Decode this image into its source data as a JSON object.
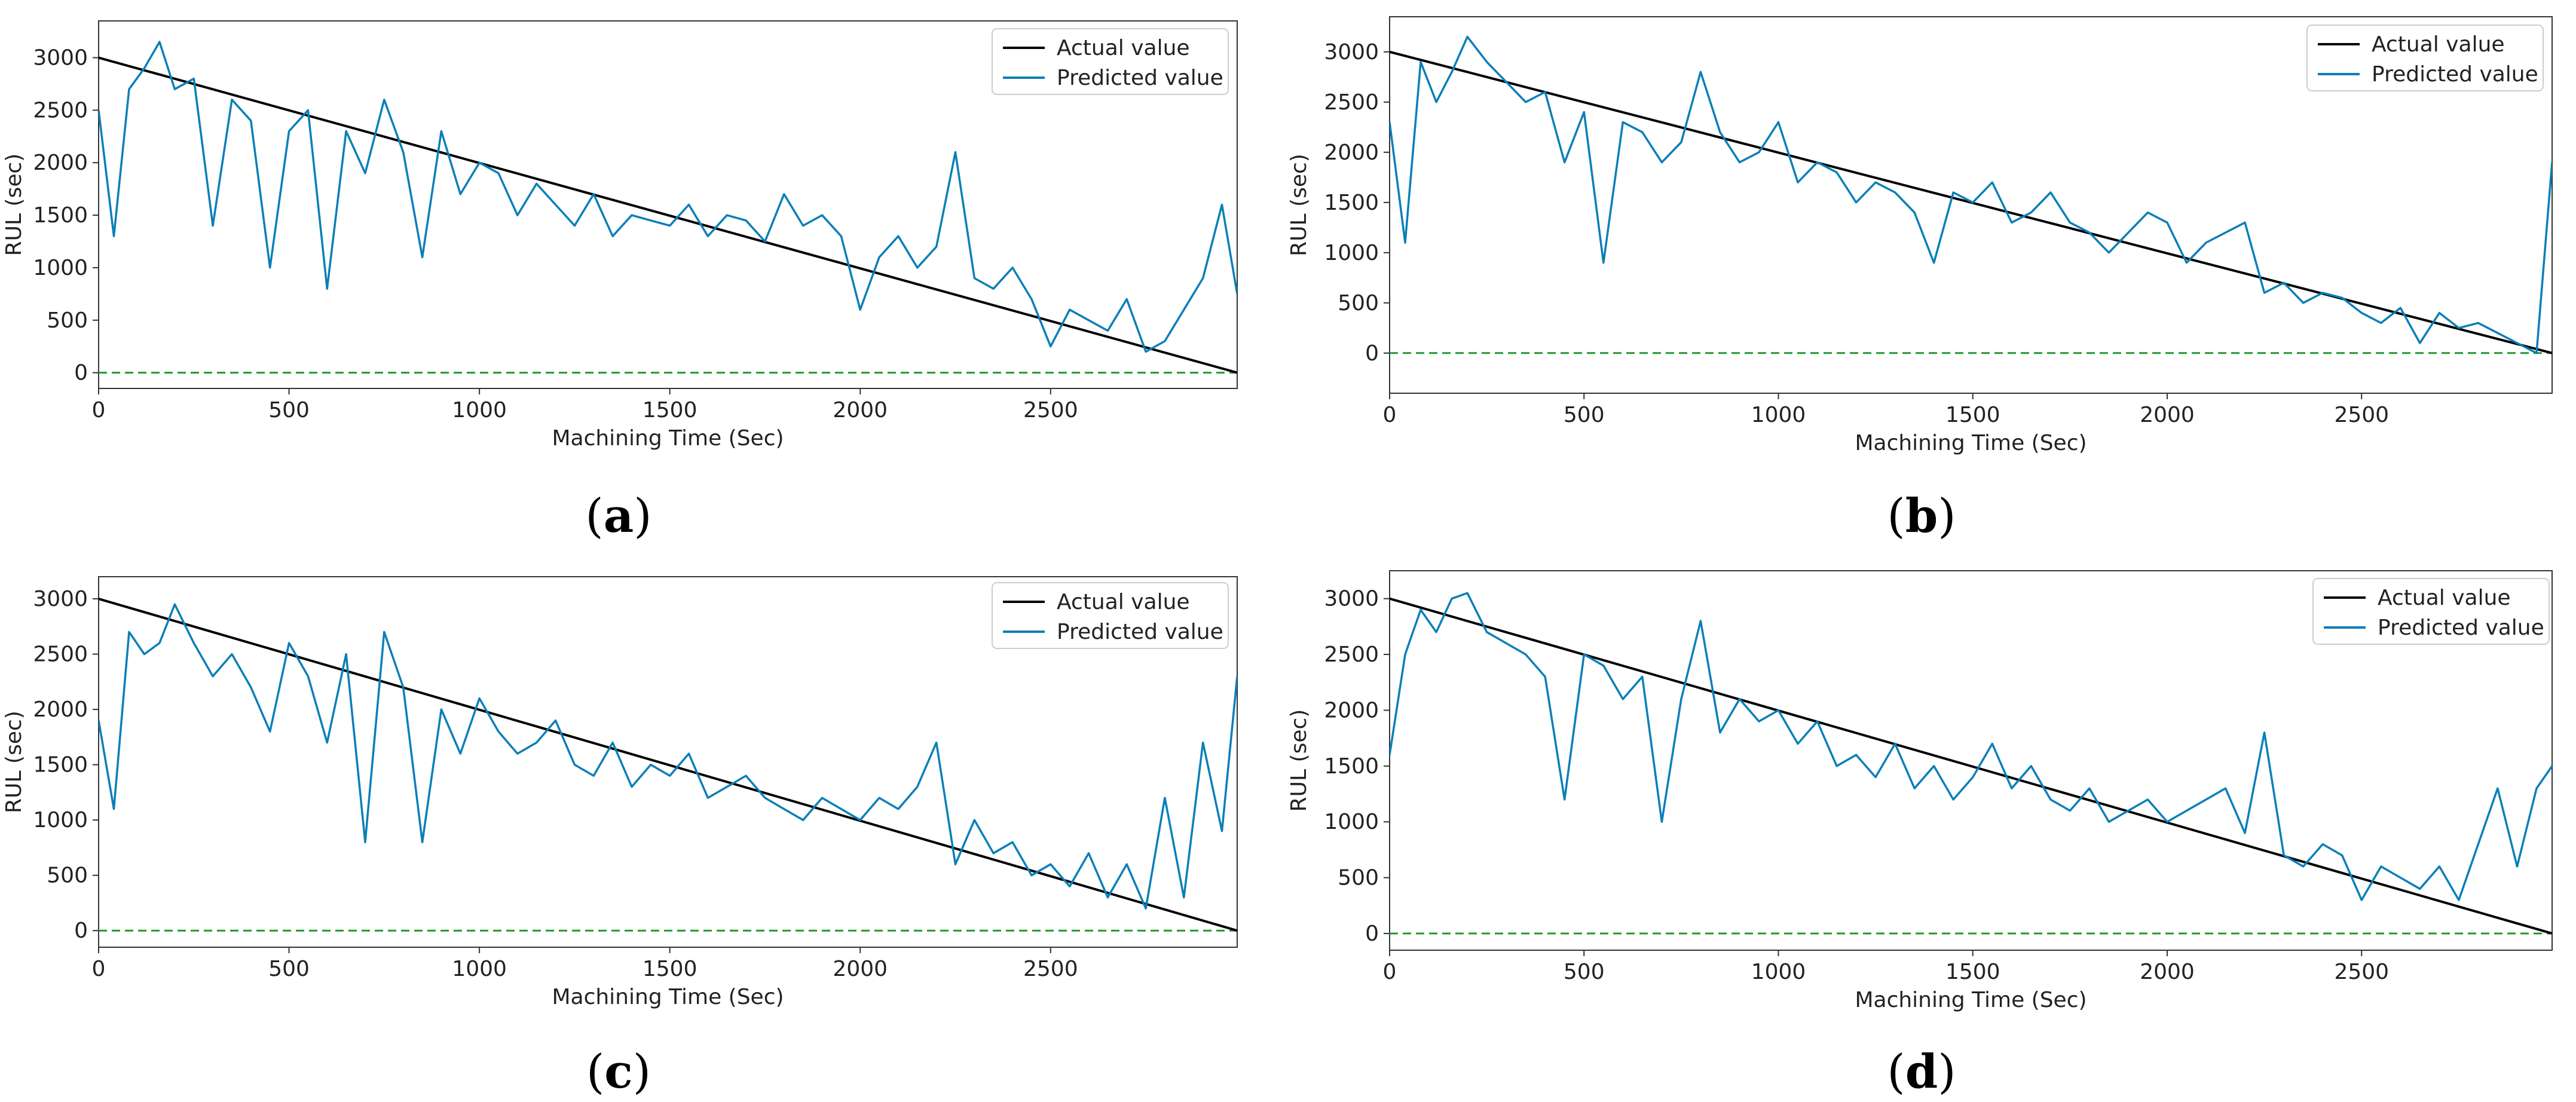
{
  "colors": {
    "actual": "#000000",
    "predicted": "#0a7fb8",
    "zero_line": "#1f9a2e",
    "axis": "#333333"
  },
  "chart_data": [
    {
      "id": "a",
      "type": "line",
      "panel_label": "a",
      "xlabel": "Machining Time (Sec)",
      "ylabel": "RUL (sec)",
      "xlim": [
        0,
        2990
      ],
      "ylim": [
        -150,
        3350
      ],
      "xticks": [
        0,
        500,
        1000,
        1500,
        2000,
        2500
      ],
      "yticks": [
        0,
        500,
        1000,
        1500,
        2000,
        2500,
        3000
      ],
      "legend": [
        "Actual value",
        "Predicted value"
      ],
      "legend_position": "top-right",
      "series": [
        {
          "name": "Actual value",
          "x": [
            0,
            2990
          ],
          "values": [
            3000,
            0
          ]
        },
        {
          "name": "Predicted value",
          "x": [
            0,
            40,
            80,
            120,
            160,
            200,
            250,
            300,
            350,
            400,
            450,
            500,
            550,
            600,
            650,
            700,
            750,
            800,
            850,
            900,
            950,
            1000,
            1050,
            1100,
            1150,
            1200,
            1250,
            1300,
            1350,
            1400,
            1450,
            1500,
            1550,
            1600,
            1650,
            1700,
            1750,
            1800,
            1850,
            1900,
            1950,
            2000,
            2050,
            2100,
            2150,
            2200,
            2250,
            2300,
            2350,
            2400,
            2450,
            2500,
            2550,
            2600,
            2650,
            2700,
            2750,
            2800,
            2850,
            2900,
            2950,
            2990
          ],
          "values": [
            2500,
            1300,
            2700,
            2900,
            3150,
            2700,
            2800,
            1400,
            2600,
            2400,
            1000,
            2300,
            2500,
            800,
            2300,
            1900,
            2600,
            2100,
            1100,
            2300,
            1700,
            2000,
            1900,
            1500,
            1800,
            1600,
            1400,
            1700,
            1300,
            1500,
            1450,
            1400,
            1600,
            1300,
            1500,
            1450,
            1250,
            1700,
            1400,
            1500,
            1300,
            600,
            1100,
            1300,
            1000,
            1200,
            2100,
            900,
            800,
            1000,
            700,
            250,
            600,
            500,
            400,
            700,
            200,
            300,
            600,
            900,
            1600,
            750
          ]
        }
      ]
    },
    {
      "id": "b",
      "type": "line",
      "panel_label": "b",
      "xlabel": "Machining Time (Sec)",
      "ylabel": "RUL (sec)",
      "xlim": [
        0,
        2990
      ],
      "ylim": [
        -400,
        3350
      ],
      "xticks": [
        0,
        500,
        1000,
        1500,
        2000,
        2500
      ],
      "yticks": [
        0,
        500,
        1000,
        1500,
        2000,
        2500,
        3000
      ],
      "legend": [
        "Actual value",
        "Predicted value"
      ],
      "legend_position": "top-right",
      "series": [
        {
          "name": "Actual value",
          "x": [
            0,
            2990
          ],
          "values": [
            3000,
            0
          ]
        },
        {
          "name": "Predicted value",
          "x": [
            0,
            40,
            80,
            120,
            160,
            200,
            250,
            300,
            350,
            400,
            450,
            500,
            550,
            600,
            650,
            700,
            750,
            800,
            850,
            900,
            950,
            1000,
            1050,
            1100,
            1150,
            1200,
            1250,
            1300,
            1350,
            1400,
            1450,
            1500,
            1550,
            1600,
            1650,
            1700,
            1750,
            1800,
            1850,
            1900,
            1950,
            2000,
            2050,
            2100,
            2150,
            2200,
            2250,
            2300,
            2350,
            2400,
            2450,
            2500,
            2550,
            2600,
            2650,
            2700,
            2750,
            2800,
            2850,
            2900,
            2950,
            2990
          ],
          "values": [
            2300,
            1100,
            2900,
            2500,
            2800,
            3150,
            2900,
            2700,
            2500,
            2600,
            1900,
            2400,
            900,
            2300,
            2200,
            1900,
            2100,
            2800,
            2200,
            1900,
            2000,
            2300,
            1700,
            1900,
            1800,
            1500,
            1700,
            1600,
            1400,
            900,
            1600,
            1500,
            1700,
            1300,
            1400,
            1600,
            1300,
            1200,
            1000,
            1200,
            1400,
            1300,
            900,
            1100,
            1200,
            1300,
            600,
            700,
            500,
            600,
            550,
            400,
            300,
            450,
            100,
            400,
            250,
            300,
            200,
            100,
            0,
            1900
          ]
        }
      ]
    },
    {
      "id": "c",
      "type": "line",
      "panel_label": "c",
      "xlabel": "Machining Time (Sec)",
      "ylabel": "RUL (sec)",
      "xlim": [
        0,
        2990
      ],
      "ylim": [
        -150,
        3200
      ],
      "xticks": [
        0,
        500,
        1000,
        1500,
        2000,
        2500
      ],
      "yticks": [
        0,
        500,
        1000,
        1500,
        2000,
        2500,
        3000
      ],
      "legend": [
        "Actual value",
        "Predicted value"
      ],
      "legend_position": "top-right",
      "series": [
        {
          "name": "Actual value",
          "x": [
            0,
            2990
          ],
          "values": [
            3000,
            0
          ]
        },
        {
          "name": "Predicted value",
          "x": [
            0,
            40,
            80,
            120,
            160,
            200,
            250,
            300,
            350,
            400,
            450,
            500,
            550,
            600,
            650,
            700,
            750,
            800,
            850,
            900,
            950,
            1000,
            1050,
            1100,
            1150,
            1200,
            1250,
            1300,
            1350,
            1400,
            1450,
            1500,
            1550,
            1600,
            1650,
            1700,
            1750,
            1800,
            1850,
            1900,
            1950,
            2000,
            2050,
            2100,
            2150,
            2200,
            2250,
            2300,
            2350,
            2400,
            2450,
            2500,
            2550,
            2600,
            2650,
            2700,
            2750,
            2800,
            2850,
            2900,
            2950,
            2990
          ],
          "values": [
            1900,
            1100,
            2700,
            2500,
            2600,
            2950,
            2600,
            2300,
            2500,
            2200,
            1800,
            2600,
            2300,
            1700,
            2500,
            800,
            2700,
            2200,
            800,
            2000,
            1600,
            2100,
            1800,
            1600,
            1700,
            1900,
            1500,
            1400,
            1700,
            1300,
            1500,
            1400,
            1600,
            1200,
            1300,
            1400,
            1200,
            1100,
            1000,
            1200,
            1100,
            1000,
            1200,
            1100,
            1300,
            1700,
            600,
            1000,
            700,
            800,
            500,
            600,
            400,
            700,
            300,
            600,
            200,
            1200,
            300,
            1700,
            900,
            2300
          ]
        }
      ]
    },
    {
      "id": "d",
      "type": "line",
      "panel_label": "d",
      "xlabel": "Machining Time (Sec)",
      "ylabel": "RUL (sec)",
      "xlim": [
        0,
        2990
      ],
      "ylim": [
        -150,
        3250
      ],
      "xticks": [
        0,
        500,
        1000,
        1500,
        2000,
        2500
      ],
      "yticks": [
        0,
        500,
        1000,
        1500,
        2000,
        2500,
        3000
      ],
      "legend": [
        "Actual value",
        "Predicted value"
      ],
      "legend_position": "top-right",
      "series": [
        {
          "name": "Actual value",
          "x": [
            0,
            2990
          ],
          "values": [
            3000,
            0
          ]
        },
        {
          "name": "Predicted value",
          "x": [
            0,
            40,
            80,
            120,
            160,
            200,
            250,
            300,
            350,
            400,
            450,
            500,
            550,
            600,
            650,
            700,
            750,
            800,
            850,
            900,
            950,
            1000,
            1050,
            1100,
            1150,
            1200,
            1250,
            1300,
            1350,
            1400,
            1450,
            1500,
            1550,
            1600,
            1650,
            1700,
            1750,
            1800,
            1850,
            1900,
            1950,
            2000,
            2050,
            2100,
            2150,
            2200,
            2250,
            2300,
            2350,
            2400,
            2450,
            2500,
            2550,
            2600,
            2650,
            2700,
            2750,
            2800,
            2850,
            2900,
            2950,
            2990
          ],
          "values": [
            1600,
            2500,
            2900,
            2700,
            3000,
            3050,
            2700,
            2600,
            2500,
            2300,
            1200,
            2500,
            2400,
            2100,
            2300,
            1000,
            2100,
            2800,
            1800,
            2100,
            1900,
            2000,
            1700,
            1900,
            1500,
            1600,
            1400,
            1700,
            1300,
            1500,
            1200,
            1400,
            1700,
            1300,
            1500,
            1200,
            1100,
            1300,
            1000,
            1100,
            1200,
            1000,
            1100,
            1200,
            1300,
            900,
            1800,
            700,
            600,
            800,
            700,
            300,
            600,
            500,
            400,
            600,
            300,
            800,
            1300,
            600,
            1300,
            1500
          ]
        }
      ]
    }
  ]
}
